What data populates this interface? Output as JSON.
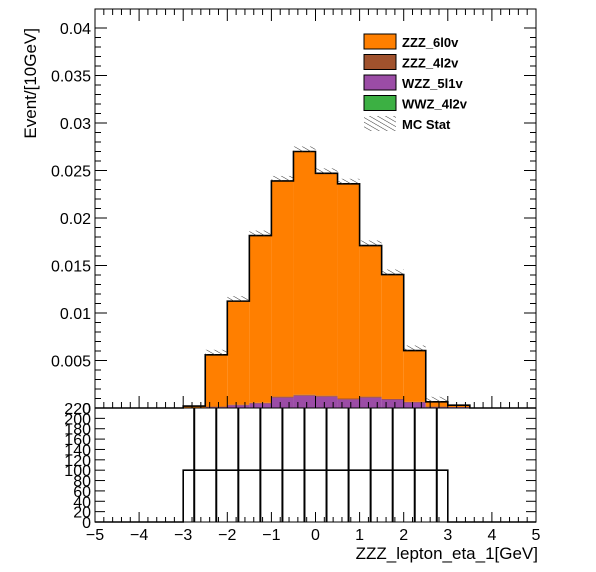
{
  "chart_data": {
    "type": "bar",
    "stacked": true,
    "x_bin_edges": [
      -5,
      -4.5,
      -4,
      -3.5,
      -3,
      -2.5,
      -2,
      -1.5,
      -1,
      -0.5,
      0,
      0.5,
      1,
      1.5,
      2,
      2.5,
      3,
      3.5,
      4,
      4.5,
      5
    ],
    "ylabel": "Event/[10GeV]",
    "xlabel": "ZZZ_lepton_eta_1[GeV]",
    "xlim": [
      -5,
      5
    ],
    "ylim": [
      0,
      0.042
    ],
    "x_ticks": [
      "−5",
      "−4",
      "−3",
      "−2",
      "−1",
      "0",
      "1",
      "2",
      "3",
      "4",
      "5"
    ],
    "y_ticks": [
      "0",
      "0.005",
      "0.01",
      "0.015",
      "0.02",
      "0.025",
      "0.03",
      "0.035",
      "0.04"
    ],
    "legend_position": "top-right",
    "series": [
      {
        "name": "WWZ_4l2v",
        "color": "#3cb043",
        "values": [
          0,
          0,
          0,
          0,
          0,
          0.0,
          0.0,
          0.0,
          0.0,
          0.0,
          0.0,
          0.0,
          0.0,
          0.0,
          0.0,
          0.0,
          0,
          0,
          0,
          0
        ]
      },
      {
        "name": "WZZ_5l1v",
        "color": "#9b4ca6",
        "values": [
          0,
          0,
          0,
          0,
          5e-05,
          0.0001,
          0.0003,
          0.0005,
          0.0011,
          0.0013,
          0.0012,
          0.0009,
          0.0011,
          0.0009,
          0.0006,
          0.0001,
          0.0001,
          0,
          0,
          0
        ]
      },
      {
        "name": "ZZZ_4l2v",
        "color": "#a0522d",
        "values": [
          0,
          0,
          0,
          0,
          0,
          5e-05,
          5e-05,
          5e-05,
          0.0001,
          0.0001,
          0.0001,
          0.0001,
          0.0001,
          5e-05,
          5e-05,
          5e-05,
          0,
          0,
          0,
          0
        ]
      },
      {
        "name": "ZZZ_6l0v",
        "color": "#ff7f00",
        "values": [
          0,
          0,
          0,
          0,
          0.00015,
          0.00545,
          0.0109,
          0.0176,
          0.0227,
          0.0256,
          0.0234,
          0.0226,
          0.0159,
          0.0131,
          0.0054,
          0.0005,
          0.0002,
          0,
          0,
          0
        ]
      }
    ],
    "legend": [
      {
        "name": "ZZZ_6l0v",
        "color": "#ff7f00",
        "kind": "fill"
      },
      {
        "name": "ZZZ_4l2v",
        "color": "#a0522d",
        "kind": "fill"
      },
      {
        "name": "WZZ_5l1v",
        "color": "#9b4ca6",
        "kind": "fill"
      },
      {
        "name": "WWZ_4l2v",
        "color": "#3cb043",
        "kind": "fill"
      },
      {
        "name": "MC Stat",
        "color": "#333333",
        "kind": "hatch"
      }
    ],
    "ratio_panel": {
      "ylim": [
        0,
        220
      ],
      "y_ticks": [
        "0",
        "20",
        "40",
        "60",
        "80",
        "100",
        "120",
        "140",
        "160",
        "180",
        "200",
        "220"
      ],
      "step_range": [
        -3,
        3
      ],
      "step_value": 100,
      "vertical_lines_x": [
        -2.75,
        -2.25,
        -1.75,
        -1.25,
        -0.75,
        -0.25,
        0.25,
        0.75,
        1.25,
        1.75,
        2.25,
        2.75
      ],
      "vertical_lines_top": 220
    }
  }
}
